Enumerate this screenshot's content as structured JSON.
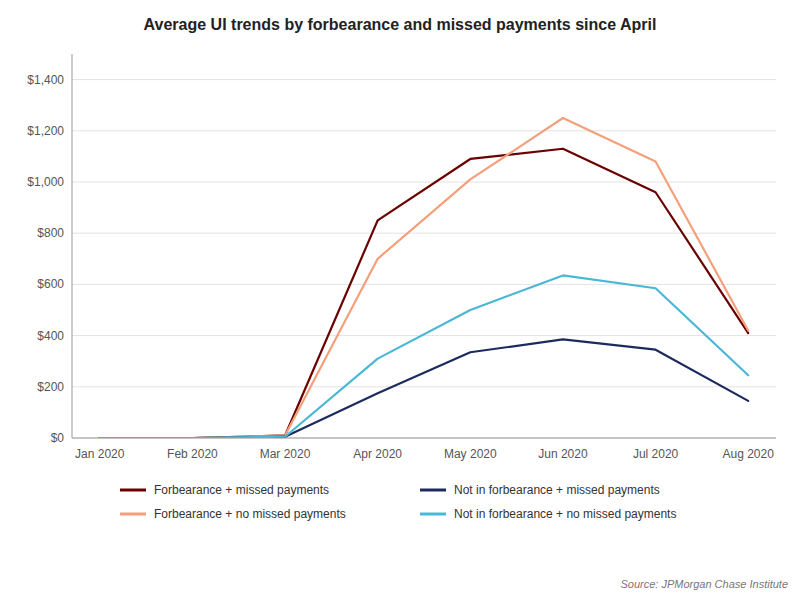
{
  "chart_data": {
    "type": "line",
    "title": "Average UI trends by forbearance and missed payments since April",
    "annotations": [
      "Source: JPMorgan Chase Institute"
    ],
    "categories": [
      "Jan 2020",
      "Feb 2020",
      "Mar 2020",
      "Apr 2020",
      "May 2020",
      "Jun 2020",
      "Jul 2020",
      "Aug 2020"
    ],
    "series": [
      {
        "name": "Forbearance + missed payments",
        "color": "#6B0000",
        "values": [
          0,
          0,
          10,
          850,
          1090,
          1130,
          960,
          410
        ]
      },
      {
        "name": "Forbearance + no missed payments",
        "color": "#F4A07A",
        "values": [
          0,
          0,
          10,
          700,
          1010,
          1250,
          1080,
          420
        ]
      },
      {
        "name": "Not in forbearance + missed payments",
        "color": "#1C2B5E",
        "values": [
          0,
          0,
          5,
          175,
          335,
          385,
          345,
          145
        ]
      },
      {
        "name": "Not in forbearance + no missed payments",
        "color": "#4AB8D4",
        "values": [
          0,
          0,
          5,
          310,
          500,
          635,
          585,
          245
        ]
      }
    ],
    "ylim": [
      0,
      1500
    ],
    "yticks": [
      {
        "value": 0,
        "label": "$0"
      },
      {
        "value": 200,
        "label": "$200"
      },
      {
        "value": 400,
        "label": "$400"
      },
      {
        "value": 600,
        "label": "$600"
      },
      {
        "value": 800,
        "label": "$800"
      },
      {
        "value": 1000,
        "label": "$1,000"
      },
      {
        "value": 1200,
        "label": "$1,200"
      },
      {
        "value": 1400,
        "label": "$1,400"
      }
    ],
    "grid": true,
    "legend": "bottom"
  }
}
